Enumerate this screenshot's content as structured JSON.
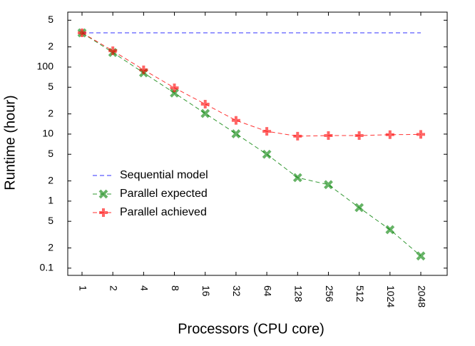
{
  "chart_data": {
    "type": "line",
    "x_label": "Processors (CPU core)",
    "y_label": "Runtime (hour)",
    "categories": [
      "1",
      "2",
      "4",
      "8",
      "16",
      "32",
      "64",
      "128",
      "256",
      "512",
      "1024",
      "2048"
    ],
    "log_y": true,
    "ylim": [
      0.078,
      660
    ],
    "yticks": [
      {
        "value": 0.1,
        "label": "0.1"
      },
      {
        "value": 0.2,
        "label": "2"
      },
      {
        "value": 0.5,
        "label": "5"
      },
      1,
      2,
      5,
      10,
      {
        "value": 20,
        "label": "2"
      },
      {
        "value": 50,
        "label": "5"
      },
      100,
      {
        "value": 200,
        "label": "2"
      },
      {
        "value": 500,
        "label": "5"
      }
    ],
    "legend": "lower left",
    "series": [
      {
        "name": "Sequential model",
        "color": "#0000ff",
        "marker": "none",
        "values": [
          324,
          324,
          324,
          324,
          324,
          324,
          324,
          324,
          324,
          324,
          324,
          324
        ]
      },
      {
        "name": "Parallel expected",
        "color": "#008000",
        "marker": "x",
        "values": [
          324,
          165,
          82,
          41,
          20.3,
          10.1,
          5.0,
          2.24,
          1.76,
          0.8,
          0.375,
          0.152
        ]
      },
      {
        "name": "Parallel achieved",
        "color": "#ff0000",
        "marker": "plus",
        "values": [
          324,
          175,
          91,
          49,
          28,
          16,
          11,
          9.3,
          9.5,
          9.5,
          9.8,
          9.9
        ]
      }
    ]
  }
}
